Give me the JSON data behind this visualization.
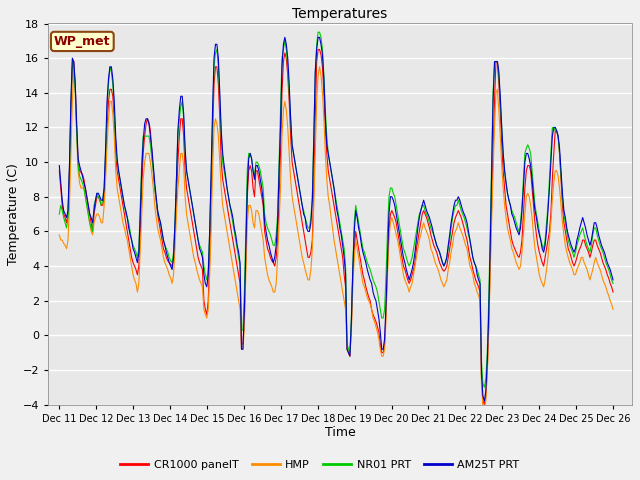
{
  "title": "Temperatures",
  "xlabel": "Time",
  "ylabel": "Temperature (C)",
  "ylim": [
    -4,
    18
  ],
  "yticks": [
    -4,
    -2,
    0,
    2,
    4,
    6,
    8,
    10,
    12,
    14,
    16,
    18
  ],
  "plot_bg_color": "#e8e8e8",
  "fig_bg_color": "#f0f0f0",
  "station_label": "WP_met",
  "legend_entries": [
    "CR1000 panelT",
    "HMP",
    "NR01 PRT",
    "AM25T PRT"
  ],
  "line_colors": [
    "#ff0000",
    "#ff8c00",
    "#00cc00",
    "#0000cc"
  ],
  "xtick_labels": [
    "Dec 11",
    "Dec 12",
    "Dec 13",
    "Dec 14",
    "Dec 15",
    "Dec 16",
    "Dec 17",
    "Dec 18",
    "Dec 19",
    "Dec 20",
    "Dec 21",
    "Dec 22",
    "Dec 23",
    "Dec 24",
    "Dec 25",
    "Dec 26"
  ],
  "n_days": 16,
  "pts_per_day": 24,
  "cr1000": [
    9.5,
    8.5,
    7.5,
    7.0,
    6.8,
    6.5,
    7.0,
    9.5,
    13.0,
    15.5,
    15.8,
    14.5,
    12.0,
    10.0,
    9.5,
    9.4,
    9.3,
    9.0,
    8.5,
    8.0,
    7.5,
    7.0,
    6.5,
    6.0,
    7.0,
    7.5,
    8.0,
    8.0,
    7.8,
    7.5,
    7.5,
    8.0,
    10.0,
    12.0,
    13.5,
    14.2,
    14.2,
    13.8,
    12.5,
    10.5,
    9.5,
    9.0,
    8.5,
    8.0,
    7.5,
    7.0,
    6.5,
    6.0,
    5.5,
    5.0,
    4.5,
    4.2,
    4.0,
    3.8,
    3.5,
    4.0,
    6.0,
    8.5,
    10.5,
    11.5,
    12.2,
    12.5,
    12.3,
    11.8,
    10.5,
    9.5,
    8.5,
    7.8,
    7.0,
    6.5,
    6.0,
    5.5,
    5.0,
    4.8,
    4.5,
    4.3,
    4.2,
    4.1,
    4.0,
    4.5,
    6.0,
    8.0,
    10.0,
    11.5,
    12.5,
    12.5,
    11.5,
    9.5,
    8.5,
    8.0,
    7.5,
    7.0,
    6.5,
    6.0,
    5.5,
    5.0,
    4.5,
    4.2,
    4.0,
    3.8,
    2.0,
    1.5,
    1.2,
    2.0,
    4.5,
    8.0,
    11.5,
    14.5,
    15.5,
    15.5,
    14.5,
    12.5,
    10.0,
    9.0,
    8.5,
    8.0,
    7.5,
    7.0,
    6.5,
    6.0,
    5.5,
    5.0,
    4.5,
    4.0,
    3.5,
    3.0,
    -0.5,
    -0.5,
    1.0,
    4.5,
    8.0,
    9.5,
    9.8,
    9.5,
    8.5,
    8.0,
    9.5,
    9.5,
    9.0,
    8.5,
    8.0,
    7.5,
    6.0,
    5.5,
    5.0,
    4.8,
    4.5,
    4.3,
    4.2,
    4.0,
    4.5,
    5.5,
    8.0,
    10.5,
    14.0,
    15.8,
    16.3,
    16.0,
    15.0,
    13.5,
    11.5,
    10.0,
    9.5,
    9.0,
    8.5,
    8.0,
    7.5,
    7.0,
    6.5,
    6.0,
    5.5,
    5.0,
    4.5,
    4.5,
    4.8,
    5.5,
    8.5,
    12.5,
    15.8,
    16.5,
    16.5,
    16.2,
    15.5,
    14.0,
    12.0,
    10.5,
    9.5,
    9.0,
    8.5,
    8.0,
    7.5,
    7.0,
    6.5,
    6.0,
    5.5,
    5.0,
    4.5,
    3.5,
    2.8,
    -0.8,
    -1.0,
    -1.2,
    0.5,
    3.5,
    5.0,
    6.0,
    5.5,
    5.0,
    4.5,
    4.0,
    3.5,
    3.2,
    2.8,
    2.5,
    2.2,
    2.0,
    1.5,
    1.2,
    1.0,
    0.8,
    0.5,
    0.2,
    -0.5,
    -1.0,
    -1.0,
    -0.5,
    1.5,
    4.0,
    6.0,
    7.0,
    7.2,
    7.0,
    6.8,
    6.5,
    6.0,
    5.5,
    5.0,
    4.5,
    4.0,
    3.8,
    3.5,
    3.2,
    3.0,
    3.2,
    3.5,
    3.8,
    4.2,
    5.0,
    5.5,
    6.0,
    6.5,
    7.0,
    7.2,
    7.0,
    6.8,
    6.5,
    6.2,
    5.8,
    5.5,
    5.2,
    5.0,
    4.8,
    4.5,
    4.2,
    4.0,
    3.8,
    3.7,
    3.8,
    4.0,
    4.5,
    5.0,
    5.5,
    6.0,
    6.5,
    6.8,
    7.0,
    7.2,
    7.0,
    6.8,
    6.5,
    6.2,
    5.8,
    5.5,
    5.0,
    4.5,
    4.2,
    3.8,
    3.5,
    3.2,
    3.0,
    2.8,
    2.5,
    -2.5,
    -3.8,
    -4.0,
    -3.5,
    -2.0,
    0.5,
    4.0,
    7.5,
    10.5,
    13.5,
    15.8,
    15.8,
    14.5,
    13.0,
    11.0,
    9.5,
    8.5,
    7.5,
    7.0,
    6.5,
    6.0,
    5.5,
    5.2,
    5.0,
    4.8,
    4.6,
    4.5,
    4.8,
    5.5,
    7.0,
    8.5,
    9.5,
    9.8,
    9.8,
    9.5,
    8.5,
    7.5,
    6.5,
    5.8,
    5.2,
    4.8,
    4.5,
    4.2,
    4.0,
    4.5,
    5.0,
    5.5,
    6.0,
    7.0,
    9.0,
    10.5,
    11.8,
    11.8,
    11.5,
    10.5,
    9.0,
    7.5,
    6.5,
    6.0,
    5.5,
    5.0,
    4.8,
    4.5,
    4.2,
    4.0,
    4.2,
    4.5,
    4.8,
    5.0,
    5.2,
    5.5,
    5.5,
    5.2,
    5.0,
    4.8,
    4.5,
    4.8,
    5.2,
    5.5,
    5.5,
    5.2,
    5.0,
    4.8,
    4.5,
    4.2,
    4.0,
    3.8,
    3.5,
    3.3,
    3.0,
    2.8,
    2.5
  ],
  "hmp": [
    5.8,
    5.5,
    5.5,
    5.3,
    5.2,
    5.0,
    5.5,
    7.5,
    10.5,
    13.5,
    15.2,
    14.0,
    11.5,
    9.5,
    8.8,
    8.5,
    8.5,
    8.5,
    8.0,
    7.5,
    7.0,
    6.5,
    6.0,
    5.8,
    6.5,
    6.8,
    7.0,
    7.0,
    6.8,
    6.5,
    6.5,
    7.5,
    9.0,
    11.0,
    12.5,
    13.5,
    13.5,
    12.8,
    11.5,
    9.5,
    8.5,
    8.0,
    7.5,
    7.0,
    6.5,
    6.2,
    5.8,
    5.5,
    5.0,
    4.5,
    4.0,
    3.5,
    3.2,
    3.0,
    2.5,
    3.0,
    5.0,
    7.0,
    9.0,
    10.0,
    10.5,
    10.5,
    10.5,
    10.0,
    9.3,
    8.5,
    7.5,
    6.8,
    6.2,
    5.8,
    5.5,
    5.0,
    4.5,
    4.2,
    4.0,
    3.8,
    3.5,
    3.3,
    3.0,
    3.5,
    5.0,
    7.0,
    8.5,
    9.5,
    10.5,
    10.5,
    9.8,
    8.0,
    7.0,
    6.5,
    6.0,
    5.5,
    5.0,
    4.5,
    4.2,
    3.8,
    3.5,
    3.2,
    3.0,
    2.8,
    1.5,
    1.2,
    1.0,
    1.5,
    3.5,
    6.0,
    9.5,
    12.0,
    12.5,
    12.2,
    11.5,
    10.0,
    8.5,
    7.5,
    7.0,
    6.5,
    6.0,
    5.5,
    5.0,
    4.5,
    4.0,
    3.5,
    3.0,
    2.5,
    2.0,
    1.5,
    -0.8,
    -0.8,
    0.5,
    3.5,
    6.5,
    7.5,
    7.5,
    7.2,
    6.5,
    6.2,
    7.2,
    7.2,
    7.0,
    6.5,
    6.0,
    5.5,
    4.5,
    4.0,
    3.5,
    3.2,
    3.0,
    2.8,
    2.5,
    2.5,
    3.0,
    4.5,
    6.5,
    8.5,
    11.5,
    13.0,
    13.5,
    13.0,
    12.0,
    10.5,
    9.0,
    8.0,
    7.5,
    7.0,
    6.5,
    6.0,
    5.5,
    5.0,
    4.5,
    4.2,
    3.8,
    3.5,
    3.2,
    3.2,
    3.8,
    5.0,
    7.5,
    10.5,
    13.5,
    15.0,
    15.5,
    15.0,
    14.0,
    12.5,
    10.5,
    9.0,
    8.0,
    7.5,
    6.8,
    6.2,
    5.5,
    5.0,
    4.5,
    4.0,
    3.5,
    3.0,
    2.5,
    2.0,
    1.5,
    -0.8,
    -1.0,
    -1.2,
    0.3,
    2.8,
    4.5,
    5.5,
    5.0,
    4.5,
    4.0,
    3.5,
    3.0,
    2.8,
    2.5,
    2.2,
    2.0,
    1.8,
    1.5,
    1.0,
    0.8,
    0.5,
    0.2,
    -0.2,
    -0.8,
    -1.2,
    -1.2,
    -0.8,
    1.0,
    3.5,
    5.5,
    6.5,
    6.8,
    6.5,
    6.2,
    5.8,
    5.5,
    5.0,
    4.5,
    4.0,
    3.5,
    3.2,
    3.0,
    2.8,
    2.5,
    2.8,
    3.0,
    3.5,
    4.0,
    4.5,
    5.0,
    5.5,
    5.8,
    6.2,
    6.5,
    6.2,
    6.0,
    5.8,
    5.5,
    5.0,
    4.8,
    4.5,
    4.2,
    4.0,
    3.8,
    3.5,
    3.2,
    3.0,
    2.8,
    3.0,
    3.2,
    3.8,
    4.2,
    4.8,
    5.2,
    5.8,
    6.0,
    6.2,
    6.5,
    6.2,
    6.0,
    5.8,
    5.5,
    5.2,
    5.0,
    4.5,
    4.0,
    3.8,
    3.5,
    3.0,
    2.8,
    2.5,
    2.3,
    2.0,
    -2.8,
    -4.2,
    -4.2,
    -3.8,
    -2.2,
    0.2,
    3.5,
    6.5,
    9.5,
    12.0,
    14.0,
    14.2,
    13.0,
    11.5,
    9.8,
    8.5,
    7.5,
    6.8,
    6.2,
    5.8,
    5.5,
    5.0,
    4.8,
    4.5,
    4.2,
    4.0,
    3.8,
    4.0,
    4.8,
    5.8,
    7.0,
    8.0,
    8.2,
    8.0,
    7.5,
    6.8,
    5.8,
    5.0,
    4.5,
    4.0,
    3.5,
    3.2,
    3.0,
    2.8,
    3.2,
    3.8,
    4.5,
    5.5,
    6.5,
    7.8,
    8.8,
    9.5,
    9.5,
    9.2,
    8.5,
    7.5,
    6.5,
    5.8,
    5.2,
    4.8,
    4.5,
    4.2,
    4.0,
    3.8,
    3.5,
    3.5,
    3.8,
    4.0,
    4.2,
    4.5,
    4.5,
    4.2,
    4.0,
    3.8,
    3.5,
    3.2,
    3.5,
    3.8,
    4.2,
    4.5,
    4.2,
    4.0,
    3.8,
    3.5,
    3.2,
    3.0,
    2.8,
    2.5,
    2.3,
    2.0,
    1.8,
    1.5
  ],
  "nr01": [
    7.0,
    7.5,
    7.2,
    6.8,
    6.5,
    6.2,
    6.8,
    9.5,
    13.2,
    15.8,
    15.5,
    14.2,
    11.8,
    9.8,
    9.2,
    9.0,
    8.8,
    8.5,
    8.0,
    7.5,
    7.0,
    6.5,
    6.2,
    6.0,
    7.5,
    7.8,
    8.2,
    8.0,
    7.8,
    7.5,
    7.8,
    8.5,
    10.5,
    13.0,
    14.5,
    15.5,
    15.2,
    14.5,
    13.0,
    11.0,
    10.0,
    9.5,
    9.0,
    8.5,
    8.0,
    7.5,
    7.0,
    6.8,
    6.5,
    6.0,
    5.5,
    5.2,
    5.0,
    4.8,
    4.5,
    5.0,
    7.5,
    10.0,
    11.5,
    11.5,
    11.5,
    11.5,
    11.5,
    11.0,
    10.2,
    9.5,
    8.5,
    7.8,
    7.2,
    6.8,
    6.5,
    6.0,
    5.5,
    5.2,
    5.0,
    4.8,
    4.5,
    4.3,
    4.2,
    4.8,
    6.5,
    9.0,
    11.5,
    12.5,
    13.2,
    13.5,
    12.5,
    10.5,
    9.5,
    9.0,
    8.5,
    8.0,
    7.5,
    7.0,
    6.5,
    6.0,
    5.5,
    5.2,
    5.0,
    4.8,
    4.0,
    3.5,
    3.2,
    3.8,
    6.0,
    9.0,
    12.5,
    15.5,
    16.3,
    16.5,
    15.5,
    13.5,
    11.5,
    10.0,
    9.5,
    9.0,
    8.5,
    8.0,
    7.5,
    7.0,
    6.5,
    6.0,
    5.5,
    5.0,
    4.5,
    4.0,
    0.3,
    0.3,
    2.5,
    6.0,
    9.5,
    10.5,
    10.5,
    10.2,
    9.5,
    9.2,
    10.0,
    10.0,
    9.8,
    9.5,
    9.0,
    8.5,
    7.0,
    6.5,
    6.2,
    6.0,
    5.8,
    5.5,
    5.2,
    5.2,
    5.8,
    7.0,
    10.0,
    13.0,
    16.0,
    16.5,
    17.0,
    16.5,
    15.5,
    14.0,
    12.5,
    11.0,
    10.5,
    10.0,
    9.5,
    9.0,
    8.5,
    8.0,
    7.5,
    7.2,
    6.8,
    6.5,
    6.2,
    6.2,
    6.8,
    8.0,
    11.5,
    15.0,
    16.8,
    17.5,
    17.5,
    17.2,
    16.5,
    15.0,
    13.0,
    11.5,
    10.5,
    10.0,
    9.5,
    9.0,
    8.5,
    8.0,
    7.5,
    7.0,
    6.5,
    6.0,
    5.5,
    5.0,
    4.0,
    -0.5,
    -0.8,
    -1.0,
    1.0,
    4.0,
    6.5,
    7.5,
    7.0,
    6.5,
    6.0,
    5.5,
    5.0,
    4.8,
    4.5,
    4.2,
    4.0,
    3.8,
    3.5,
    3.2,
    3.0,
    2.8,
    2.5,
    2.0,
    1.5,
    1.0,
    1.0,
    1.5,
    3.5,
    6.0,
    8.0,
    8.5,
    8.5,
    8.2,
    8.0,
    7.5,
    7.0,
    6.5,
    6.0,
    5.5,
    5.0,
    4.8,
    4.5,
    4.2,
    4.0,
    4.2,
    4.5,
    5.0,
    5.5,
    6.0,
    6.5,
    7.0,
    7.2,
    7.5,
    7.5,
    7.2,
    7.0,
    6.8,
    6.5,
    6.2,
    6.0,
    5.8,
    5.5,
    5.2,
    5.0,
    4.8,
    4.5,
    4.2,
    4.0,
    4.2,
    4.5,
    5.0,
    5.5,
    6.2,
    6.8,
    7.2,
    7.5,
    7.5,
    7.8,
    7.5,
    7.2,
    7.0,
    6.8,
    6.5,
    6.2,
    5.8,
    5.5,
    5.0,
    4.5,
    4.2,
    4.0,
    3.8,
    3.5,
    3.2,
    -1.5,
    -2.8,
    -3.0,
    -2.5,
    -1.0,
    2.0,
    5.8,
    10.0,
    14.0,
    15.5,
    15.8,
    15.8,
    15.0,
    13.5,
    12.0,
    10.5,
    9.5,
    8.8,
    8.2,
    7.8,
    7.5,
    7.2,
    7.0,
    6.8,
    6.5,
    6.2,
    6.0,
    6.5,
    7.5,
    9.0,
    10.5,
    10.8,
    11.0,
    10.8,
    10.5,
    9.5,
    8.5,
    7.5,
    7.0,
    6.5,
    6.0,
    5.5,
    5.2,
    5.0,
    5.5,
    6.5,
    7.5,
    9.0,
    10.5,
    12.0,
    11.8,
    12.0,
    11.8,
    11.5,
    10.5,
    9.2,
    8.0,
    7.0,
    6.5,
    6.0,
    5.5,
    5.2,
    5.0,
    4.8,
    4.5,
    4.8,
    5.2,
    5.5,
    5.8,
    6.0,
    6.2,
    5.8,
    5.5,
    5.2,
    5.0,
    4.8,
    5.2,
    5.8,
    6.2,
    6.2,
    5.8,
    5.5,
    5.2,
    5.0,
    4.8,
    4.5,
    4.2,
    4.0,
    3.8,
    3.5,
    3.2,
    3.0
  ],
  "am25": [
    9.8,
    8.8,
    7.8,
    7.2,
    7.0,
    6.8,
    7.2,
    9.8,
    13.5,
    16.0,
    15.8,
    14.5,
    12.2,
    10.2,
    9.8,
    9.5,
    9.2,
    8.8,
    8.5,
    8.0,
    7.5,
    7.0,
    6.8,
    6.5,
    7.2,
    7.8,
    8.2,
    8.2,
    8.0,
    7.8,
    7.8,
    8.5,
    10.8,
    13.5,
    14.8,
    15.5,
    15.5,
    14.8,
    13.5,
    11.5,
    10.2,
    9.5,
    9.0,
    8.5,
    8.0,
    7.5,
    7.2,
    6.8,
    6.2,
    5.8,
    5.5,
    5.0,
    4.8,
    4.5,
    4.2,
    4.8,
    7.0,
    9.5,
    11.2,
    12.2,
    12.5,
    12.5,
    12.2,
    11.5,
    10.8,
    9.8,
    8.8,
    8.0,
    7.2,
    6.8,
    6.5,
    6.0,
    5.5,
    5.2,
    4.8,
    4.5,
    4.2,
    4.0,
    3.8,
    4.5,
    6.5,
    9.0,
    11.8,
    13.0,
    13.8,
    13.8,
    12.8,
    10.8,
    9.5,
    9.0,
    8.5,
    8.0,
    7.5,
    7.0,
    6.5,
    6.0,
    5.5,
    5.0,
    4.8,
    4.5,
    3.5,
    3.0,
    2.8,
    3.5,
    6.0,
    9.5,
    13.0,
    16.0,
    16.8,
    16.8,
    16.0,
    14.0,
    11.8,
    10.5,
    9.8,
    9.2,
    8.5,
    8.0,
    7.5,
    7.2,
    6.8,
    6.2,
    5.8,
    5.2,
    4.8,
    4.2,
    -0.8,
    -0.8,
    1.5,
    5.0,
    8.5,
    10.2,
    10.5,
    10.2,
    9.5,
    9.0,
    9.8,
    9.8,
    9.5,
    9.0,
    8.5,
    7.8,
    6.5,
    6.0,
    5.5,
    5.2,
    4.8,
    4.5,
    4.2,
    4.5,
    5.2,
    6.5,
    9.5,
    12.0,
    15.5,
    16.8,
    17.2,
    16.8,
    16.0,
    14.5,
    12.5,
    11.0,
    10.5,
    10.0,
    9.5,
    9.0,
    8.5,
    8.0,
    7.5,
    7.0,
    6.8,
    6.2,
    6.0,
    6.0,
    6.5,
    7.8,
    11.2,
    15.2,
    16.5,
    17.2,
    17.2,
    16.8,
    16.2,
    14.8,
    12.5,
    11.0,
    10.5,
    10.0,
    9.5,
    9.0,
    8.5,
    7.8,
    7.2,
    6.8,
    6.2,
    5.8,
    5.2,
    4.5,
    3.5,
    -0.8,
    -1.0,
    -1.2,
    0.8,
    3.8,
    6.0,
    7.2,
    6.8,
    6.2,
    5.8,
    5.2,
    4.8,
    4.5,
    4.2,
    3.8,
    3.5,
    3.2,
    3.0,
    2.5,
    2.2,
    2.0,
    1.5,
    1.0,
    0.2,
    -0.8,
    -0.8,
    -0.2,
    1.8,
    4.5,
    7.0,
    8.0,
    8.0,
    7.8,
    7.5,
    7.0,
    6.5,
    6.0,
    5.5,
    5.0,
    4.5,
    4.2,
    3.8,
    3.5,
    3.2,
    3.5,
    3.8,
    4.2,
    4.8,
    5.5,
    6.2,
    6.8,
    7.2,
    7.5,
    7.8,
    7.5,
    7.2,
    7.0,
    6.8,
    6.5,
    6.2,
    5.8,
    5.5,
    5.2,
    5.0,
    4.8,
    4.5,
    4.2,
    4.0,
    4.2,
    4.5,
    5.2,
    5.8,
    6.5,
    7.0,
    7.5,
    7.8,
    7.8,
    8.0,
    7.8,
    7.5,
    7.2,
    7.0,
    6.8,
    6.5,
    6.0,
    5.5,
    5.0,
    4.5,
    4.2,
    4.0,
    3.5,
    3.2,
    3.0,
    -2.2,
    -3.5,
    -3.8,
    -3.2,
    -1.5,
    1.2,
    5.0,
    9.2,
    13.5,
    15.8,
    15.8,
    15.8,
    15.2,
    13.8,
    12.0,
    10.5,
    9.5,
    8.8,
    8.2,
    7.8,
    7.5,
    7.0,
    6.8,
    6.5,
    6.2,
    6.0,
    5.8,
    6.2,
    7.2,
    8.5,
    10.0,
    10.5,
    10.5,
    10.2,
    9.8,
    9.0,
    8.0,
    7.2,
    6.8,
    6.2,
    5.8,
    5.5,
    5.0,
    4.8,
    5.2,
    6.0,
    7.2,
    8.5,
    10.0,
    11.5,
    12.0,
    12.0,
    11.8,
    11.5,
    10.8,
    9.5,
    8.2,
    7.2,
    6.8,
    6.2,
    5.8,
    5.5,
    5.2,
    5.0,
    4.8,
    5.0,
    5.5,
    5.8,
    6.2,
    6.5,
    6.8,
    6.5,
    6.2,
    5.8,
    5.5,
    5.2,
    5.5,
    6.0,
    6.5,
    6.5,
    6.2,
    5.8,
    5.5,
    5.2,
    5.0,
    4.8,
    4.5,
    4.2,
    4.0,
    3.8,
    3.5,
    3.2
  ]
}
